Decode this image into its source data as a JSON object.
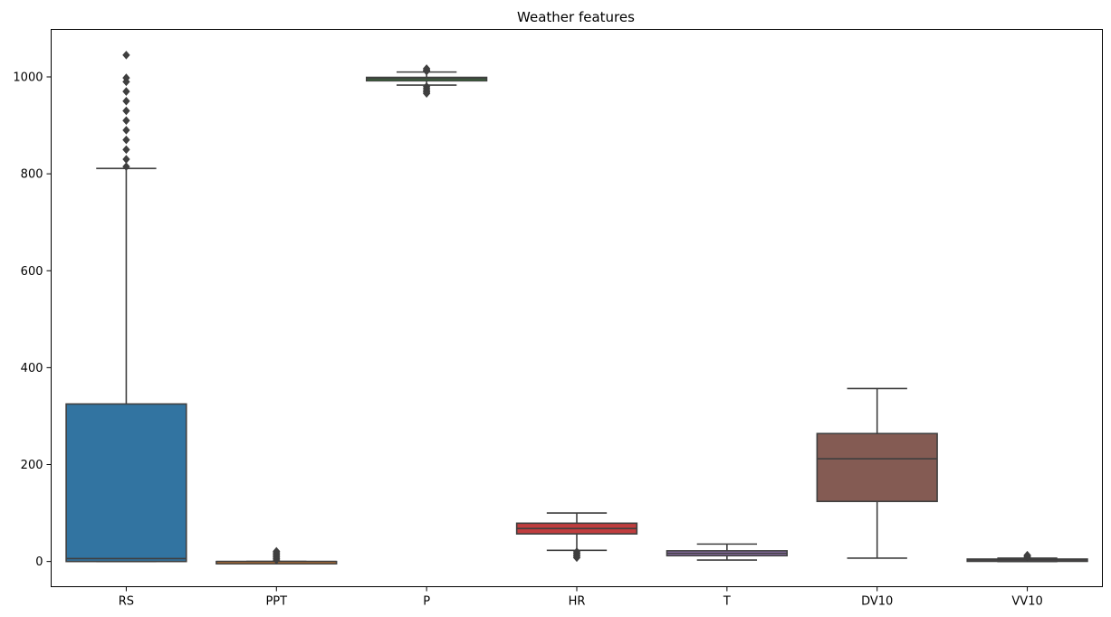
{
  "chart_data": {
    "type": "box",
    "title": "Weather features",
    "xlabel": "",
    "ylabel": "",
    "ylim": [
      -52,
      1098
    ],
    "yticks": [
      0,
      200,
      400,
      600,
      800,
      1000
    ],
    "grid": false,
    "categories": [
      "RS",
      "PPT",
      "P",
      "HR",
      "T",
      "DV10",
      "VV10"
    ],
    "boxes": [
      {
        "name": "RS",
        "color": "#3274a1",
        "whisker_low": 0,
        "q1": 0,
        "median": 6,
        "q3": 325,
        "whisker_high": 811,
        "outliers_low": [],
        "outliers_high": [
          815,
          830,
          850,
          870,
          890,
          910,
          930,
          950,
          970,
          990,
          998,
          1045
        ]
      },
      {
        "name": "PPT",
        "color": "#e1812c",
        "whisker_low": 0,
        "q1": 0,
        "median": 0,
        "q3": 0,
        "whisker_high": 0,
        "outliers_low": [],
        "outliers_high": [
          3,
          6,
          9,
          12,
          15,
          18,
          21
        ]
      },
      {
        "name": "P",
        "color": "#3a923a",
        "whisker_low": 983,
        "q1": 992,
        "median": 996,
        "q3": 999,
        "whisker_high": 1010,
        "outliers_low": [
          980,
          976,
          972,
          969,
          966
        ],
        "outliers_high": [
          1012,
          1014,
          1017
        ]
      },
      {
        "name": "HR",
        "color": "#c03d3e",
        "whisker_low": 23,
        "q1": 57,
        "median": 68,
        "q3": 79,
        "whisker_high": 100,
        "outliers_low": [
          20,
          17,
          14,
          11,
          8
        ],
        "outliers_high": []
      },
      {
        "name": "T",
        "color": "#9372b2",
        "whisker_low": 3,
        "q1": 12,
        "median": 17,
        "q3": 22,
        "whisker_high": 36,
        "outliers_low": [],
        "outliers_high": []
      },
      {
        "name": "DV10",
        "color": "#845b53",
        "whisker_low": 7,
        "q1": 124,
        "median": 212,
        "q3": 264,
        "whisker_high": 357,
        "outliers_low": [],
        "outliers_high": []
      },
      {
        "name": "VV10",
        "color": "#d684bd",
        "whisker_low": 0,
        "q1": 2,
        "median": 3,
        "q3": 5,
        "whisker_high": 7,
        "outliers_low": [],
        "outliers_high": [
          9,
          11,
          13
        ]
      }
    ]
  }
}
